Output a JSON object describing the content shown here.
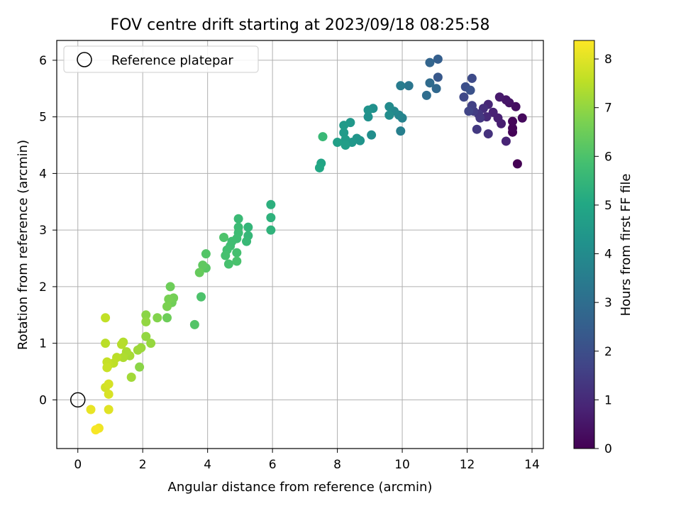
{
  "chart_data": {
    "type": "scatter",
    "title": "FOV centre drift starting at 2023/09/18 08:25:58",
    "xlabel": "Angular distance from reference (arcmin)",
    "ylabel": "Rotation from reference (arcmin)",
    "xlim": [
      -0.65,
      14.35
    ],
    "ylim": [
      -0.86,
      6.35
    ],
    "xticks": [
      0,
      2,
      4,
      6,
      8,
      10,
      12,
      14
    ],
    "yticks": [
      0,
      1,
      2,
      3,
      4,
      5,
      6
    ],
    "grid": true,
    "legend": {
      "placement": "top-left",
      "entries": [
        "Reference platepar"
      ]
    },
    "reference_point": {
      "x": 0,
      "y": 0,
      "label": "Reference platepar"
    },
    "colorbar": {
      "label": "Hours from first FF file",
      "range": [
        0,
        8.38
      ],
      "ticks": [
        0,
        1,
        2,
        3,
        4,
        5,
        6,
        7,
        8
      ],
      "colormap": "viridis"
    },
    "points": [
      {
        "x": 13.55,
        "y": 4.17,
        "c": 0.0
      },
      {
        "x": 13.4,
        "y": 4.73,
        "c": 0.05
      },
      {
        "x": 13.4,
        "y": 4.8,
        "c": 0.1
      },
      {
        "x": 13.4,
        "y": 4.92,
        "c": 0.15
      },
      {
        "x": 13.7,
        "y": 4.98,
        "c": 0.2
      },
      {
        "x": 13.5,
        "y": 5.18,
        "c": 0.3
      },
      {
        "x": 13.3,
        "y": 5.25,
        "c": 0.4
      },
      {
        "x": 13.2,
        "y": 5.3,
        "c": 0.5
      },
      {
        "x": 13.0,
        "y": 5.35,
        "c": 0.6
      },
      {
        "x": 13.05,
        "y": 4.88,
        "c": 0.7
      },
      {
        "x": 12.95,
        "y": 4.98,
        "c": 0.75
      },
      {
        "x": 12.8,
        "y": 5.08,
        "c": 0.8
      },
      {
        "x": 13.2,
        "y": 4.57,
        "c": 0.85
      },
      {
        "x": 12.65,
        "y": 5.22,
        "c": 0.9
      },
      {
        "x": 12.6,
        "y": 5.0,
        "c": 1.0
      },
      {
        "x": 12.5,
        "y": 5.15,
        "c": 1.1
      },
      {
        "x": 12.65,
        "y": 4.7,
        "c": 1.2
      },
      {
        "x": 12.35,
        "y": 5.05,
        "c": 1.3
      },
      {
        "x": 12.4,
        "y": 4.98,
        "c": 1.35
      },
      {
        "x": 12.3,
        "y": 4.78,
        "c": 1.4
      },
      {
        "x": 12.2,
        "y": 5.1,
        "c": 1.5
      },
      {
        "x": 12.15,
        "y": 5.2,
        "c": 1.6
      },
      {
        "x": 12.05,
        "y": 5.1,
        "c": 1.7
      },
      {
        "x": 11.9,
        "y": 5.35,
        "c": 1.8
      },
      {
        "x": 12.15,
        "y": 5.68,
        "c": 1.9
      },
      {
        "x": 11.95,
        "y": 5.53,
        "c": 2.0
      },
      {
        "x": 12.1,
        "y": 5.47,
        "c": 2.1
      },
      {
        "x": 11.1,
        "y": 5.7,
        "c": 2.3
      },
      {
        "x": 11.1,
        "y": 6.02,
        "c": 2.5
      },
      {
        "x": 10.85,
        "y": 5.96,
        "c": 2.7
      },
      {
        "x": 11.05,
        "y": 5.5,
        "c": 2.8
      },
      {
        "x": 10.85,
        "y": 5.6,
        "c": 2.9
      },
      {
        "x": 10.75,
        "y": 5.38,
        "c": 3.0
      },
      {
        "x": 10.2,
        "y": 5.55,
        "c": 3.3
      },
      {
        "x": 9.95,
        "y": 5.55,
        "c": 3.5
      },
      {
        "x": 9.95,
        "y": 4.75,
        "c": 3.6
      },
      {
        "x": 10.0,
        "y": 4.98,
        "c": 3.7
      },
      {
        "x": 9.9,
        "y": 5.03,
        "c": 3.8
      },
      {
        "x": 9.75,
        "y": 5.1,
        "c": 3.9
      },
      {
        "x": 9.6,
        "y": 5.18,
        "c": 4.0
      },
      {
        "x": 9.6,
        "y": 5.03,
        "c": 4.05
      },
      {
        "x": 9.05,
        "y": 4.68,
        "c": 4.1
      },
      {
        "x": 9.1,
        "y": 5.15,
        "c": 4.15
      },
      {
        "x": 8.95,
        "y": 5.0,
        "c": 4.2
      },
      {
        "x": 8.95,
        "y": 5.12,
        "c": 4.25
      },
      {
        "x": 8.7,
        "y": 4.58,
        "c": 4.3
      },
      {
        "x": 8.6,
        "y": 4.62,
        "c": 4.35
      },
      {
        "x": 8.45,
        "y": 4.55,
        "c": 4.4
      },
      {
        "x": 8.4,
        "y": 4.9,
        "c": 4.45
      },
      {
        "x": 8.2,
        "y": 4.85,
        "c": 4.5
      },
      {
        "x": 8.2,
        "y": 4.72,
        "c": 4.55
      },
      {
        "x": 8.25,
        "y": 4.6,
        "c": 4.6
      },
      {
        "x": 8.25,
        "y": 4.5,
        "c": 4.65
      },
      {
        "x": 8.0,
        "y": 4.55,
        "c": 4.7
      },
      {
        "x": 7.5,
        "y": 4.18,
        "c": 4.9
      },
      {
        "x": 7.45,
        "y": 4.1,
        "c": 5.0
      },
      {
        "x": 7.55,
        "y": 4.65,
        "c": 5.6
      },
      {
        "x": 5.95,
        "y": 3.45,
        "c": 5.3
      },
      {
        "x": 5.95,
        "y": 3.22,
        "c": 5.35
      },
      {
        "x": 5.95,
        "y": 3.0,
        "c": 5.4
      },
      {
        "x": 5.25,
        "y": 3.05,
        "c": 5.5
      },
      {
        "x": 5.25,
        "y": 2.9,
        "c": 5.55
      },
      {
        "x": 5.2,
        "y": 2.8,
        "c": 5.6
      },
      {
        "x": 4.95,
        "y": 3.2,
        "c": 5.65
      },
      {
        "x": 4.95,
        "y": 3.05,
        "c": 5.7
      },
      {
        "x": 4.95,
        "y": 2.95,
        "c": 5.72
      },
      {
        "x": 4.9,
        "y": 2.85,
        "c": 5.75
      },
      {
        "x": 4.75,
        "y": 2.8,
        "c": 5.78
      },
      {
        "x": 4.7,
        "y": 2.72,
        "c": 5.8
      },
      {
        "x": 4.6,
        "y": 2.65,
        "c": 5.85
      },
      {
        "x": 4.9,
        "y": 2.6,
        "c": 5.88
      },
      {
        "x": 4.55,
        "y": 2.55,
        "c": 5.9
      },
      {
        "x": 4.65,
        "y": 2.4,
        "c": 5.92
      },
      {
        "x": 4.9,
        "y": 2.45,
        "c": 5.95
      },
      {
        "x": 4.5,
        "y": 2.87,
        "c": 6.0
      },
      {
        "x": 3.95,
        "y": 2.58,
        "c": 6.1
      },
      {
        "x": 3.95,
        "y": 2.33,
        "c": 6.2
      },
      {
        "x": 3.85,
        "y": 2.38,
        "c": 6.3
      },
      {
        "x": 3.75,
        "y": 2.25,
        "c": 6.4
      },
      {
        "x": 3.8,
        "y": 1.82,
        "c": 6.0
      },
      {
        "x": 3.6,
        "y": 1.33,
        "c": 6.1
      },
      {
        "x": 2.85,
        "y": 2.0,
        "c": 6.5
      },
      {
        "x": 2.9,
        "y": 1.72,
        "c": 6.55
      },
      {
        "x": 2.95,
        "y": 1.8,
        "c": 6.6
      },
      {
        "x": 2.8,
        "y": 1.78,
        "c": 6.65
      },
      {
        "x": 2.75,
        "y": 1.65,
        "c": 6.7
      },
      {
        "x": 2.75,
        "y": 1.45,
        "c": 6.5
      },
      {
        "x": 2.45,
        "y": 1.45,
        "c": 6.8
      },
      {
        "x": 2.1,
        "y": 1.5,
        "c": 6.9
      },
      {
        "x": 2.1,
        "y": 1.38,
        "c": 7.0
      },
      {
        "x": 2.1,
        "y": 1.12,
        "c": 7.0
      },
      {
        "x": 2.25,
        "y": 1.0,
        "c": 7.05
      },
      {
        "x": 1.95,
        "y": 0.92,
        "c": 7.1
      },
      {
        "x": 1.85,
        "y": 0.88,
        "c": 7.15
      },
      {
        "x": 1.9,
        "y": 0.58,
        "c": 6.9
      },
      {
        "x": 1.65,
        "y": 0.4,
        "c": 7.2
      },
      {
        "x": 1.6,
        "y": 0.78,
        "c": 7.25
      },
      {
        "x": 1.5,
        "y": 0.85,
        "c": 7.3
      },
      {
        "x": 1.4,
        "y": 0.75,
        "c": 7.35
      },
      {
        "x": 1.4,
        "y": 1.02,
        "c": 7.4
      },
      {
        "x": 1.35,
        "y": 0.98,
        "c": 7.45
      },
      {
        "x": 1.2,
        "y": 0.75,
        "c": 7.5
      },
      {
        "x": 1.1,
        "y": 0.65,
        "c": 7.55
      },
      {
        "x": 0.95,
        "y": 0.62,
        "c": 7.6
      },
      {
        "x": 0.9,
        "y": 0.67,
        "c": 7.65
      },
      {
        "x": 0.9,
        "y": 0.57,
        "c": 7.7
      },
      {
        "x": 0.85,
        "y": 1.0,
        "c": 7.5
      },
      {
        "x": 0.85,
        "y": 1.45,
        "c": 7.6
      },
      {
        "x": 0.85,
        "y": 0.22,
        "c": 7.8
      },
      {
        "x": 0.95,
        "y": 0.28,
        "c": 7.85
      },
      {
        "x": 0.95,
        "y": 0.1,
        "c": 7.9
      },
      {
        "x": 0.95,
        "y": -0.17,
        "c": 8.0
      },
      {
        "x": 0.4,
        "y": -0.17,
        "c": 8.1
      },
      {
        "x": 0.65,
        "y": -0.5,
        "c": 8.2
      },
      {
        "x": 0.55,
        "y": -0.53,
        "c": 8.3
      }
    ]
  }
}
